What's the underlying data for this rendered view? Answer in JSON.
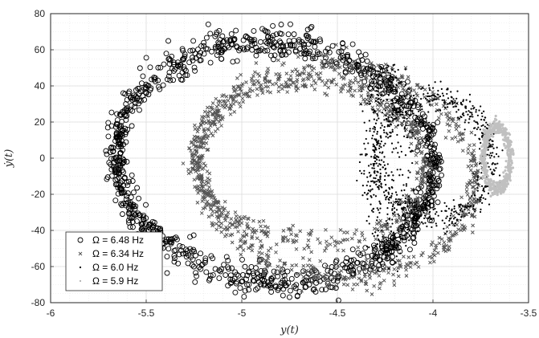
{
  "chart_data": {
    "type": "scatter",
    "title": "",
    "xlabel": "y(t)",
    "ylabel": "ẏ(t)",
    "xlim": [
      -6,
      -3.5
    ],
    "ylim": [
      -80,
      80
    ],
    "xticks": [
      "-6",
      "-5.5",
      "-5",
      "-4.5",
      "-4",
      "-3.5"
    ],
    "yticks": [
      "-80",
      "-60",
      "-40",
      "-20",
      "0",
      "20",
      "40",
      "60",
      "80"
    ],
    "grid": true,
    "minor_grid": true,
    "legend_position": "bottom-left",
    "series": [
      {
        "name": "Ω = 6.48 Hz",
        "marker": "circle",
        "color": "#000000",
        "shape": "ellipse",
        "center": [
          -4.83,
          -2
        ],
        "radius": [
          0.83,
          66
        ],
        "tilt": 0.35,
        "spread": [
          0.025,
          4.5
        ],
        "count": 1200
      },
      {
        "name": "Ω = 6.34 Hz",
        "marker": "cross",
        "color": "#555555",
        "rings": [
          {
            "center": [
              -4.65,
              -2
            ],
            "radius": [
              0.6,
              44
            ],
            "tilt": 0.3,
            "spread": [
              0.02,
              3.2
            ],
            "count": 550
          },
          {
            "center": [
              -4.5,
              -8
            ],
            "radius": [
              0.72,
              58
            ],
            "tilt": 0.4,
            "spread": [
              0.025,
              4
            ],
            "count": 700
          }
        ]
      },
      {
        "name": "Ω = 6.0 Hz",
        "marker": "dot",
        "color": "#000000",
        "rings": [
          {
            "center": [
              -4.0,
              0
            ],
            "radius": [
              0.3,
              33
            ],
            "tilt": 0.0,
            "spread": [
              0.03,
              4
            ],
            "count": 650
          },
          {
            "center": [
              -4.24,
              -2
            ],
            "radius": [
              0.09,
              50
            ],
            "tilt": 0.0,
            "spread": [
              0.03,
              5
            ],
            "count": 350
          }
        ]
      },
      {
        "name": "Ω = 5.9 Hz",
        "marker": "dot",
        "color": "#c0c0c0",
        "shape": "ellipse",
        "center": [
          -3.665,
          0
        ],
        "radius": [
          0.07,
          17
        ],
        "tilt": 0.0,
        "spread": [
          0.008,
          2
        ],
        "count": 500
      }
    ]
  },
  "legend": {
    "items": [
      {
        "label": "Ω = 6.48 Hz"
      },
      {
        "label": "Ω = 6.34 Hz"
      },
      {
        "label": "Ω = 6.0 Hz"
      },
      {
        "label": "Ω = 5.9 Hz"
      }
    ]
  }
}
